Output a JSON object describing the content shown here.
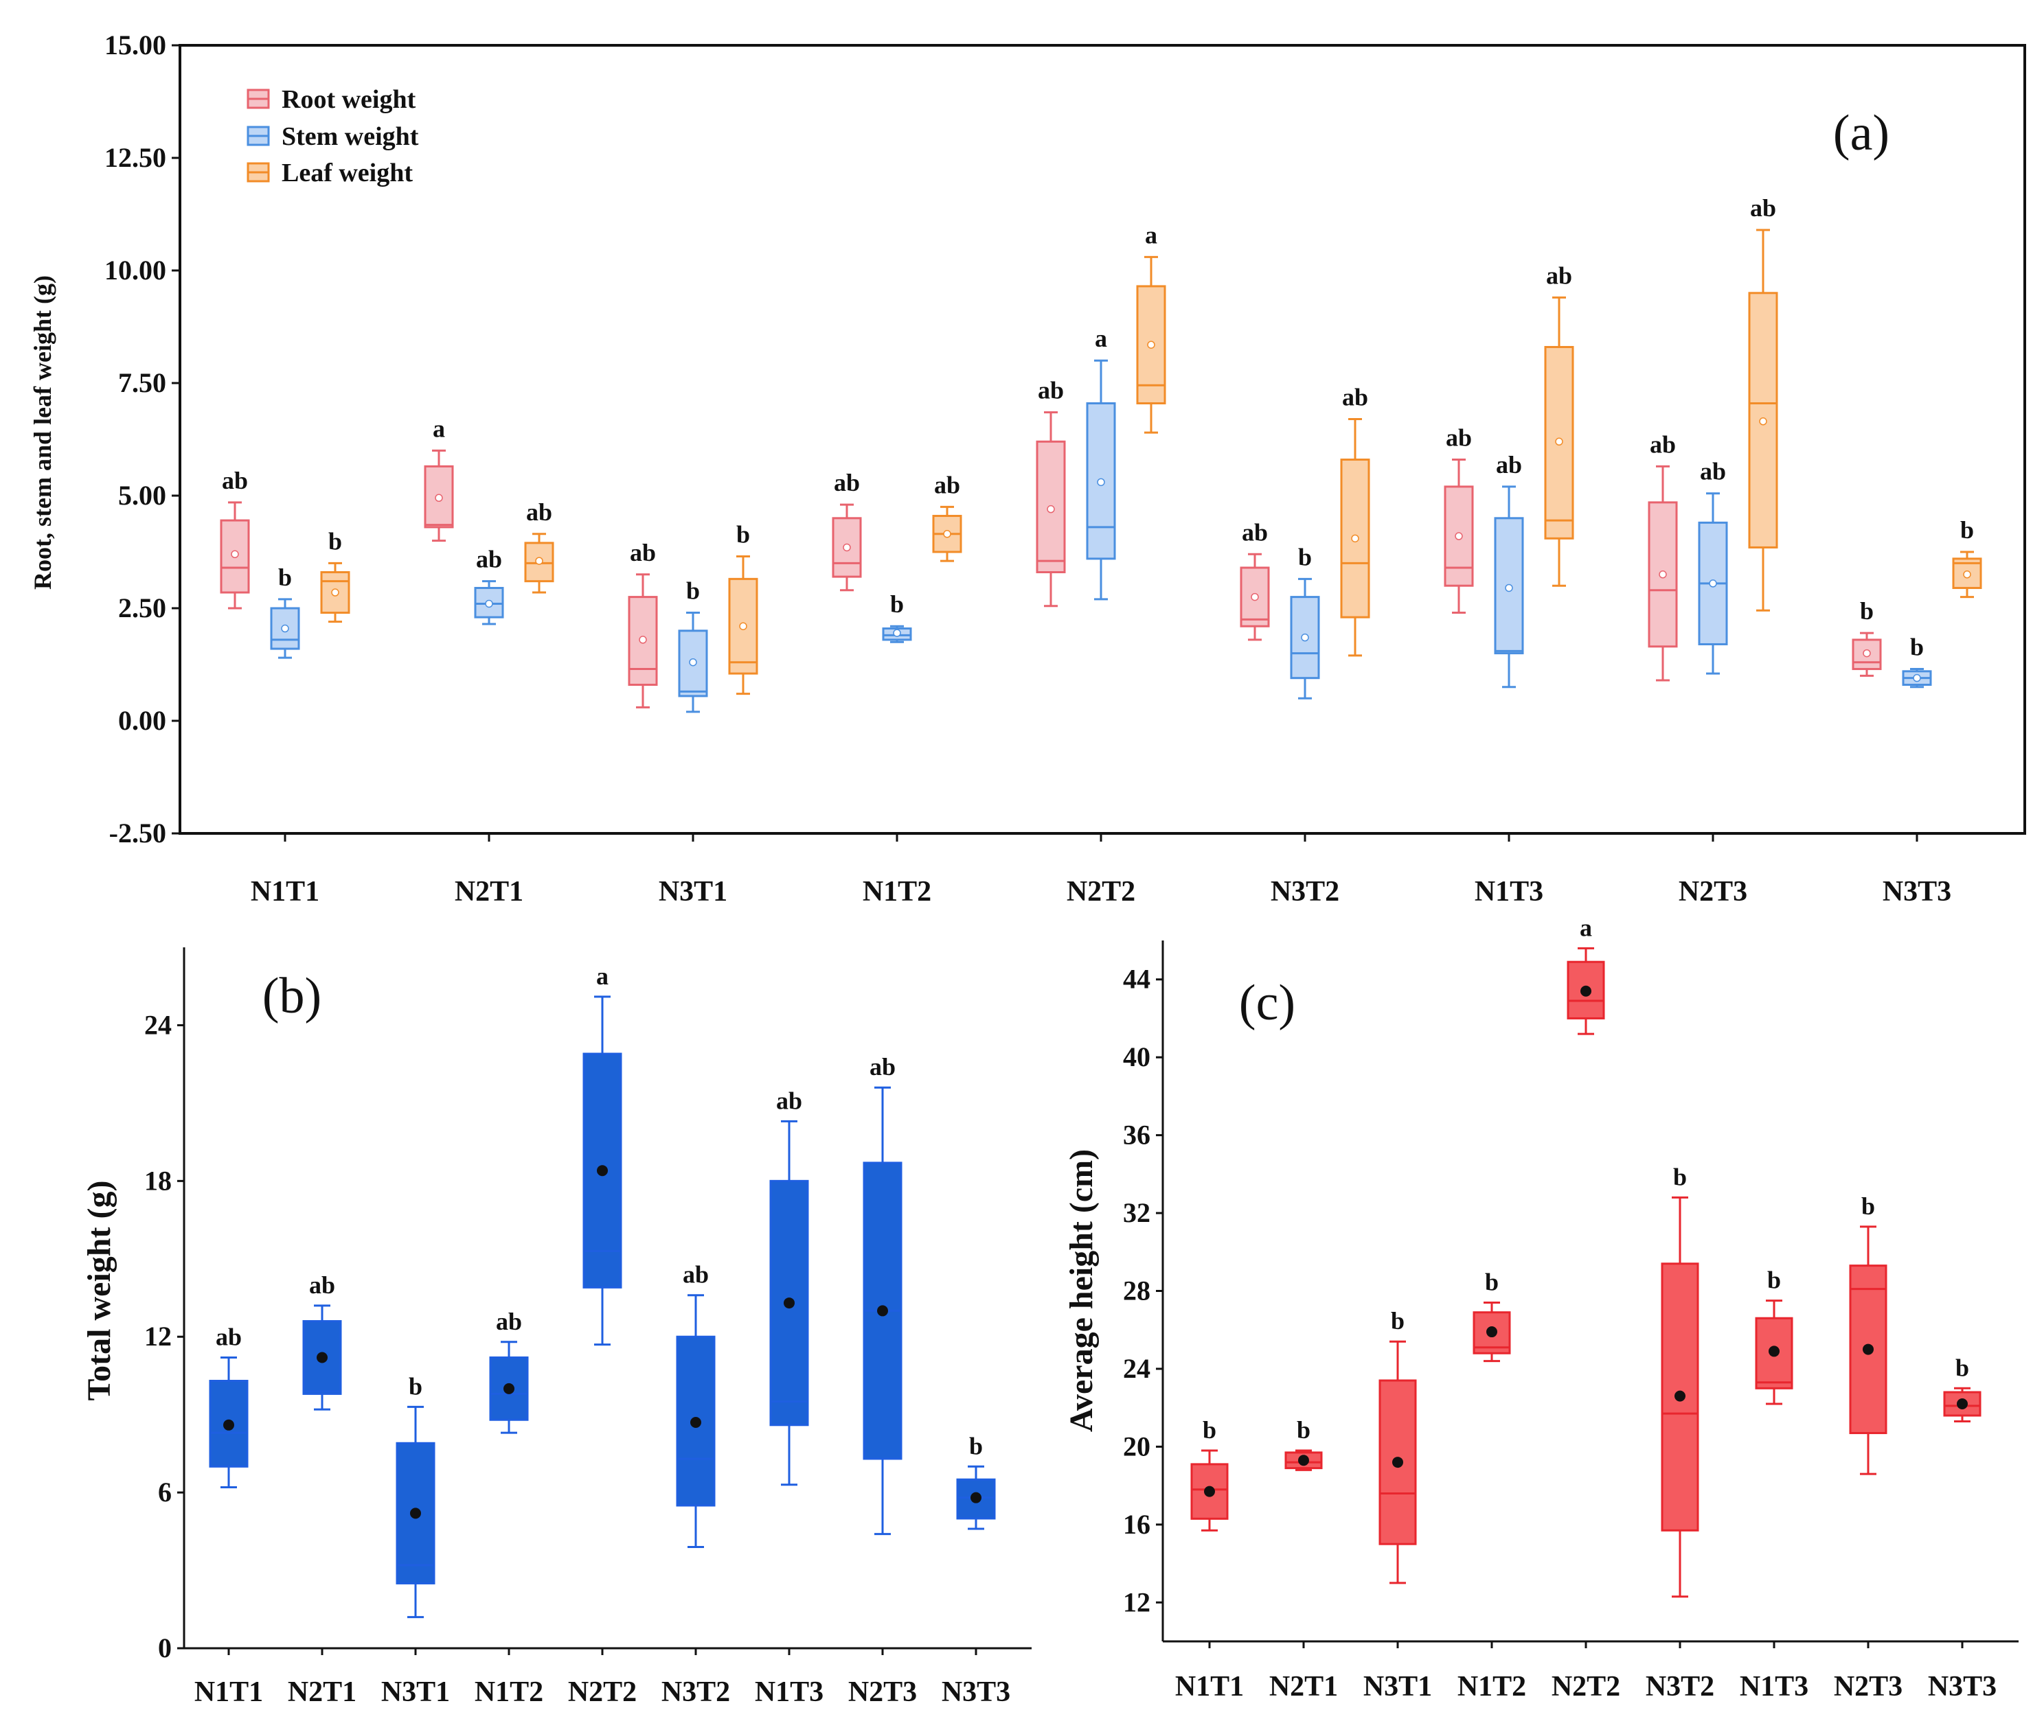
{
  "chart_data": [
    {
      "id": "a",
      "type": "box",
      "panel_label": "(a)",
      "title": "",
      "xlabel": "",
      "ylabel": "Root, stem and leaf weight (g)",
      "ylim": [
        -2.5,
        15
      ],
      "yticks": [
        "15.00",
        "12.50",
        "10.00",
        "7.50",
        "5.00",
        "2.50",
        "0.00",
        "-2.50"
      ],
      "ytick_values": [
        15,
        12.5,
        10,
        7.5,
        5,
        2.5,
        0,
        -2.5
      ],
      "categories": [
        "N1T1",
        "N2T1",
        "N3T1",
        "N1T2",
        "N2T2",
        "N3T2",
        "N1T3",
        "N2T3",
        "N3T3"
      ],
      "legend": {
        "position": "top-left"
      },
      "series": [
        {
          "name": "Root weight",
          "color": "#e8636e",
          "fill": "#f6c3c8",
          "boxes": [
            {
              "min": 2.5,
              "q1": 2.85,
              "median": 3.4,
              "q3": 4.45,
              "max": 4.85,
              "mean": 3.7
            },
            {
              "min": 4.0,
              "q1": 4.3,
              "median": 4.35,
              "q3": 5.65,
              "max": 6.0,
              "mean": 4.95
            },
            {
              "min": 0.3,
              "q1": 0.8,
              "median": 1.15,
              "q3": 2.75,
              "max": 3.25,
              "mean": 1.8
            },
            {
              "min": 2.9,
              "q1": 3.2,
              "median": 3.5,
              "q3": 4.5,
              "max": 4.8,
              "mean": 3.85
            },
            {
              "min": 2.55,
              "q1": 3.3,
              "median": 3.55,
              "q3": 6.2,
              "max": 6.85,
              "mean": 4.7
            },
            {
              "min": 1.8,
              "q1": 2.1,
              "median": 2.25,
              "q3": 3.4,
              "max": 3.7,
              "mean": 2.75
            },
            {
              "min": 2.4,
              "q1": 3.0,
              "median": 3.4,
              "q3": 5.2,
              "max": 5.8,
              "mean": 4.1
            },
            {
              "min": 0.9,
              "q1": 1.65,
              "median": 2.9,
              "q3": 4.85,
              "max": 5.65,
              "mean": 3.25
            },
            {
              "min": 1.0,
              "q1": 1.15,
              "median": 1.3,
              "q3": 1.8,
              "max": 1.95,
              "mean": 1.5
            }
          ],
          "labels": [
            "ab",
            "a",
            "ab",
            "ab",
            "ab",
            "ab",
            "ab",
            "ab",
            "b"
          ]
        },
        {
          "name": "Stem weight",
          "color": "#4a8fe0",
          "fill": "#bdd6f6",
          "boxes": [
            {
              "min": 1.4,
              "q1": 1.6,
              "median": 1.8,
              "q3": 2.5,
              "max": 2.7,
              "mean": 2.05
            },
            {
              "min": 2.15,
              "q1": 2.3,
              "median": 2.6,
              "q3": 2.95,
              "max": 3.1,
              "mean": 2.6
            },
            {
              "min": 0.2,
              "q1": 0.55,
              "median": 0.65,
              "q3": 2.0,
              "max": 2.4,
              "mean": 1.3
            },
            {
              "min": 1.75,
              "q1": 1.8,
              "median": 1.9,
              "q3": 2.05,
              "max": 2.1,
              "mean": 1.95
            },
            {
              "min": 2.7,
              "q1": 3.6,
              "median": 4.3,
              "q3": 7.05,
              "max": 8.0,
              "mean": 5.3
            },
            {
              "min": 0.5,
              "q1": 0.95,
              "median": 1.5,
              "q3": 2.75,
              "max": 3.15,
              "mean": 1.85
            },
            {
              "min": 0.75,
              "q1": 1.5,
              "median": 1.55,
              "q3": 4.5,
              "max": 5.2,
              "mean": 2.95
            },
            {
              "min": 1.05,
              "q1": 1.7,
              "median": 3.05,
              "q3": 4.4,
              "max": 5.05,
              "mean": 3.05
            },
            {
              "min": 0.75,
              "q1": 0.8,
              "median": 0.95,
              "q3": 1.1,
              "max": 1.15,
              "mean": 0.95
            }
          ],
          "labels": [
            "b",
            "ab",
            "b",
            "b",
            "a",
            "b",
            "ab",
            "ab",
            "b"
          ]
        },
        {
          "name": "Leaf weight",
          "color": "#f28c28",
          "fill": "#fbd0a6",
          "boxes": [
            {
              "min": 2.2,
              "q1": 2.4,
              "median": 3.1,
              "q3": 3.3,
              "max": 3.5,
              "mean": 2.85
            },
            {
              "min": 2.85,
              "q1": 3.1,
              "median": 3.5,
              "q3": 3.95,
              "max": 4.15,
              "mean": 3.55
            },
            {
              "min": 0.6,
              "q1": 1.05,
              "median": 1.3,
              "q3": 3.15,
              "max": 3.65,
              "mean": 2.1
            },
            {
              "min": 3.55,
              "q1": 3.75,
              "median": 4.15,
              "q3": 4.55,
              "max": 4.75,
              "mean": 4.15
            },
            {
              "min": 6.4,
              "q1": 7.05,
              "median": 7.45,
              "q3": 9.65,
              "max": 10.3,
              "mean": 8.35
            },
            {
              "min": 1.45,
              "q1": 2.3,
              "median": 3.5,
              "q3": 5.8,
              "max": 6.7,
              "mean": 4.05
            },
            {
              "min": 3.0,
              "q1": 4.05,
              "median": 4.45,
              "q3": 8.3,
              "max": 9.4,
              "mean": 6.2
            },
            {
              "min": 2.45,
              "q1": 3.85,
              "median": 7.05,
              "q3": 9.5,
              "max": 10.9,
              "mean": 6.65
            },
            {
              "min": 2.75,
              "q1": 2.95,
              "median": 3.5,
              "q3": 3.6,
              "max": 3.75,
              "mean": 3.25
            }
          ],
          "labels": [
            "b",
            "ab",
            "b",
            "ab",
            "a",
            "ab",
            "ab",
            "ab",
            "b"
          ]
        }
      ]
    },
    {
      "id": "b",
      "type": "box",
      "panel_label": "(b)",
      "title": "",
      "xlabel": "",
      "ylabel": "Total weight (g)",
      "ylim": [
        0,
        27
      ],
      "yticks": [
        "0",
        "6",
        "12",
        "18",
        "24"
      ],
      "ytick_values": [
        0,
        6,
        12,
        18,
        24
      ],
      "categories": [
        "N1T1",
        "N2T1",
        "N3T1",
        "N1T2",
        "N2T2",
        "N3T2",
        "N1T3",
        "N2T3",
        "N3T3"
      ],
      "series": [
        {
          "name": "Total weight",
          "color": "#1f5fe0",
          "fill": "#1c62d6",
          "boxes": [
            {
              "min": 6.2,
              "q1": 7.0,
              "median": 8.3,
              "q3": 10.3,
              "max": 11.2,
              "mean": 8.6
            },
            {
              "min": 9.2,
              "q1": 9.8,
              "median": 9.9,
              "q3": 12.6,
              "max": 13.2,
              "mean": 11.2
            },
            {
              "min": 1.2,
              "q1": 2.5,
              "median": 3.2,
              "q3": 7.9,
              "max": 9.3,
              "mean": 5.2
            },
            {
              "min": 8.3,
              "q1": 8.8,
              "median": 9.8,
              "q3": 11.2,
              "max": 11.8,
              "mean": 10.0
            },
            {
              "min": 11.7,
              "q1": 13.9,
              "median": 15.3,
              "q3": 22.9,
              "max": 25.1,
              "mean": 18.4
            },
            {
              "min": 3.9,
              "q1": 5.5,
              "median": 7.3,
              "q3": 12.0,
              "max": 13.6,
              "mean": 8.7
            },
            {
              "min": 6.3,
              "q1": 8.6,
              "median": 9.5,
              "q3": 18.0,
              "max": 20.3,
              "mean": 13.3
            },
            {
              "min": 4.4,
              "q1": 7.3,
              "median": 13.0,
              "q3": 18.7,
              "max": 21.6,
              "mean": 13.0
            },
            {
              "min": 4.6,
              "q1": 5.0,
              "median": 5.8,
              "q3": 6.5,
              "max": 7.0,
              "mean": 5.8
            }
          ],
          "labels": [
            "ab",
            "ab",
            "b",
            "ab",
            "a",
            "ab",
            "ab",
            "ab",
            "b"
          ]
        }
      ]
    },
    {
      "id": "c",
      "type": "box",
      "panel_label": "(c)",
      "title": "",
      "xlabel": "",
      "ylabel": "Average height (cm)",
      "ylim": [
        10,
        46
      ],
      "yticks": [
        "12",
        "16",
        "20",
        "24",
        "28",
        "32",
        "36",
        "40",
        "44"
      ],
      "ytick_values": [
        12,
        16,
        20,
        24,
        28,
        32,
        36,
        40,
        44
      ],
      "categories": [
        "N1T1",
        "N2T1",
        "N3T1",
        "N1T2",
        "N2T2",
        "N3T2",
        "N1T3",
        "N2T3",
        "N3T3"
      ],
      "series": [
        {
          "name": "Average height",
          "color": "#e8262e",
          "fill": "#f45a5f",
          "boxes": [
            {
              "min": 15.7,
              "q1": 16.3,
              "median": 17.8,
              "q3": 19.1,
              "max": 19.8,
              "mean": 17.7
            },
            {
              "min": 18.8,
              "q1": 18.9,
              "median": 19.2,
              "q3": 19.7,
              "max": 19.8,
              "mean": 19.3
            },
            {
              "min": 13.0,
              "q1": 15.0,
              "median": 17.6,
              "q3": 23.4,
              "max": 25.4,
              "mean": 19.2
            },
            {
              "min": 24.4,
              "q1": 24.8,
              "median": 25.1,
              "q3": 26.9,
              "max": 27.4,
              "mean": 25.9
            },
            {
              "min": 41.2,
              "q1": 42.0,
              "median": 42.9,
              "q3": 44.9,
              "max": 45.6,
              "mean": 43.4
            },
            {
              "min": 12.3,
              "q1": 15.7,
              "median": 21.7,
              "q3": 29.4,
              "max": 32.8,
              "mean": 22.6
            },
            {
              "min": 22.2,
              "q1": 23.0,
              "median": 23.3,
              "q3": 26.6,
              "max": 27.5,
              "mean": 24.9
            },
            {
              "min": 18.6,
              "q1": 20.7,
              "median": 28.1,
              "q3": 29.3,
              "max": 31.3,
              "mean": 25.0
            },
            {
              "min": 21.3,
              "q1": 21.6,
              "median": 22.1,
              "q3": 22.8,
              "max": 23.0,
              "mean": 22.2
            }
          ],
          "labels": [
            "b",
            "b",
            "b",
            "b",
            "a",
            "b",
            "b",
            "b",
            "b"
          ]
        }
      ]
    }
  ]
}
